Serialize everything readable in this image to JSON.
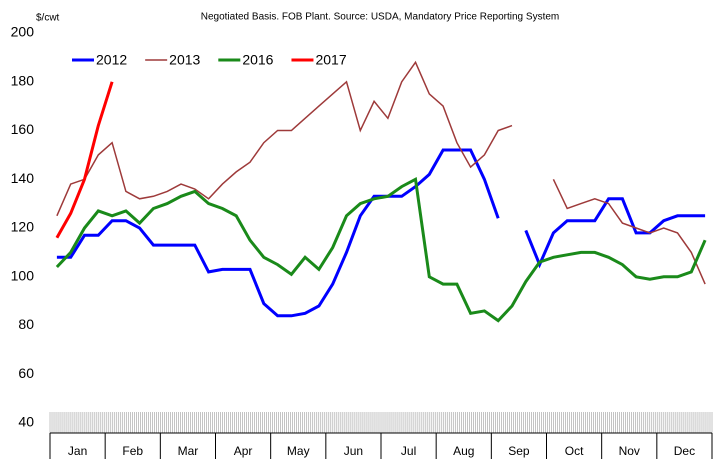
{
  "chart_data": {
    "type": "line",
    "title": "Negotiated Basis. FOB Plant. Source: USDA, Mandatory Price Reporting System",
    "y_label": "$/cwt",
    "categories": [
      null,
      "Jan",
      null,
      null,
      null,
      "Feb",
      null,
      null,
      null,
      "Mar",
      null,
      null,
      null,
      "Apr",
      null,
      null,
      null,
      "May",
      null,
      null,
      null,
      "Jun",
      null,
      null,
      null,
      "Jul",
      null,
      null,
      null,
      "Aug",
      null,
      null,
      null,
      "Sep",
      null,
      null,
      null,
      "Oct",
      null,
      null,
      null,
      "Nov",
      null,
      null,
      null,
      "Dec",
      null,
      null
    ],
    "series": [
      {
        "name": "2012",
        "color": "#0000ff",
        "values": [
          108,
          108,
          117,
          117,
          123,
          123,
          120,
          113,
          113,
          113,
          113,
          102,
          103,
          103,
          103,
          89,
          84,
          84,
          85,
          88,
          97,
          110,
          125,
          133,
          133,
          133,
          137,
          142,
          152,
          152,
          152,
          140,
          124,
          null,
          119,
          105,
          118,
          123,
          123,
          123,
          132,
          132,
          118,
          118,
          123,
          125,
          125,
          125
        ]
      },
      {
        "name": "2013",
        "color": "#9e3a3a",
        "values": [
          125,
          138,
          140,
          150,
          155,
          135,
          132,
          133,
          135,
          138,
          136,
          132,
          138,
          143,
          147,
          155,
          160,
          160,
          165,
          170,
          175,
          180,
          160,
          172,
          165,
          180,
          188,
          175,
          170,
          155,
          145,
          150,
          160,
          162,
          null,
          null,
          140,
          128,
          130,
          132,
          130,
          122,
          120,
          118,
          120,
          118,
          110,
          97
        ]
      },
      {
        "name": "2016",
        "color": "#1a8a1a",
        "values": [
          104,
          110,
          120,
          127,
          125,
          127,
          122,
          128,
          130,
          133,
          135,
          130,
          128,
          125,
          115,
          108,
          105,
          101,
          108,
          103,
          112,
          125,
          130,
          132,
          133,
          137,
          140,
          100,
          97,
          97,
          85,
          86,
          82,
          88,
          98,
          106,
          108,
          109,
          110,
          110,
          108,
          105,
          100,
          99,
          100,
          100,
          102,
          115
        ]
      },
      {
        "name": "2017",
        "color": "#ff0000",
        "values": [
          116,
          126,
          140,
          162,
          180,
          null,
          null,
          null,
          null,
          null,
          null,
          null,
          null,
          null,
          null,
          null,
          null,
          null,
          null,
          null,
          null,
          null,
          null,
          null,
          null,
          null,
          null,
          null,
          null,
          null,
          null,
          null,
          null,
          null,
          null,
          null,
          null,
          null,
          null,
          null,
          null,
          null,
          null,
          null,
          null,
          null,
          null,
          null
        ]
      }
    ],
    "ylim": [
      40,
      200
    ],
    "yticks": [
      40,
      60,
      80,
      100,
      120,
      140,
      160,
      180,
      200
    ],
    "grid": false,
    "legend": "upper left"
  }
}
